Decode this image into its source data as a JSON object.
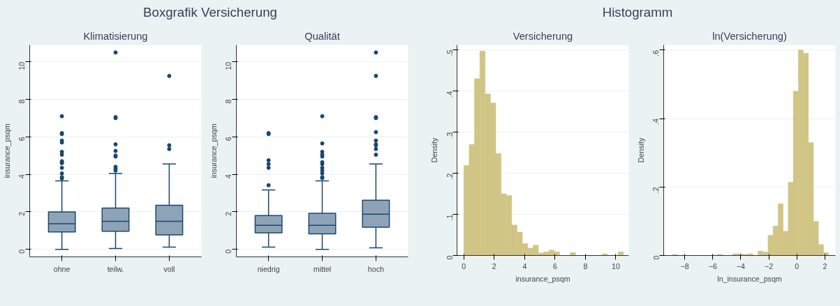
{
  "chart_data": [
    {
      "type": "box",
      "title": "Boxgrafik Versicherung",
      "subtitle": "Klimatisierung",
      "ylabel": "insurance_psqm",
      "categories": [
        "ohne",
        "teilw.",
        "voll"
      ],
      "color": "#8fa3b7",
      "marker": "circle",
      "grid": "y",
      "ylim": [
        -0.4,
        10.9
      ],
      "yticks": [
        0,
        2,
        4,
        6,
        8,
        10
      ],
      "boxes": [
        {
          "low": 0,
          "q1": 0.93,
          "median": 1.37,
          "q3": 2.0,
          "high": 3.65,
          "outliers": [
            3.78,
            3.85,
            4.05,
            4.35,
            4.6,
            4.65,
            4.7,
            5.05,
            5.2,
            5.7,
            5.8,
            6.15,
            6.2,
            7.1
          ]
        },
        {
          "low": 0.05,
          "q1": 0.97,
          "median": 1.5,
          "q3": 2.2,
          "high": 4.05,
          "outliers": [
            4.2,
            4.3,
            4.4,
            4.95,
            5.0,
            5.25,
            5.6,
            7.0,
            7.05,
            10.5
          ]
        },
        {
          "low": 0.12,
          "q1": 0.77,
          "median": 1.5,
          "q3": 2.35,
          "high": 4.55,
          "outliers": [
            5.35,
            5.55,
            9.25
          ]
        }
      ]
    },
    {
      "type": "box",
      "subtitle": "Qualität",
      "ylabel": "insurance_psqm",
      "categories": [
        "niedrig",
        "mittel",
        "hoch"
      ],
      "color": "#8fa3b7",
      "marker": "circle",
      "grid": "y",
      "ylim": [
        -0.4,
        10.9
      ],
      "yticks": [
        0,
        2,
        4,
        6,
        8,
        10
      ],
      "boxes": [
        {
          "low": 0.12,
          "q1": 0.88,
          "median": 1.28,
          "q3": 1.8,
          "high": 3.17,
          "outliers": [
            3.42,
            4.35,
            4.55,
            4.75,
            6.15,
            6.2
          ]
        },
        {
          "low": 0,
          "q1": 0.83,
          "median": 1.28,
          "q3": 1.92,
          "high": 3.65,
          "outliers": [
            3.8,
            3.85,
            4.05,
            4.2,
            4.35,
            4.55,
            4.65,
            4.95,
            5.05,
            5.2,
            5.65,
            7.1
          ]
        },
        {
          "low": 0.08,
          "q1": 1.18,
          "median": 1.88,
          "q3": 2.62,
          "high": 4.55,
          "outliers": [
            5.05,
            5.35,
            5.55,
            5.6,
            5.8,
            6.25,
            7.0,
            7.05,
            9.25,
            10.5
          ]
        }
      ]
    },
    {
      "type": "histogram",
      "title": "Histogramm",
      "subtitle": "Versicherung",
      "xlabel": "insurance_psqm",
      "ylabel": "Density",
      "color": "#d0c584",
      "grid": "y",
      "bins": [
        0,
        0.35,
        0.7,
        1.05,
        1.4,
        1.75,
        2.1,
        2.45,
        2.8,
        3.15,
        3.5,
        3.85,
        4.2,
        4.55,
        4.9,
        5.25,
        5.6,
        5.95,
        6.3,
        6.65,
        7.0,
        7.35,
        7.7,
        8.05,
        8.4,
        8.75,
        9.1,
        9.45,
        9.8,
        10.15,
        10.5
      ],
      "values": [
        0.219,
        0.27,
        0.43,
        0.497,
        0.393,
        0.371,
        0.248,
        0.15,
        0.146,
        0.074,
        0.057,
        0.029,
        0.018,
        0.025,
        0.006,
        0.009,
        0.013,
        0.009,
        0,
        0,
        0.007,
        0,
        0,
        0,
        0,
        0,
        0.004,
        0,
        0,
        0.009
      ],
      "xlim": [
        -0.45,
        10.85
      ],
      "xticks": [
        0,
        2,
        4,
        6,
        8,
        10
      ],
      "ylim": [
        0,
        0.512
      ],
      "yticks": [
        0,
        {
          "value": 0.1,
          "label": ".1"
        },
        {
          "value": 0.2,
          "label": ".2"
        },
        {
          "value": 0.3,
          "label": ".3"
        },
        {
          "value": 0.4,
          "label": ".4"
        },
        {
          "value": 0.5,
          "label": ".5"
        }
      ]
    },
    {
      "type": "histogram",
      "subtitle": "ln(Versicherung)",
      "xlabel": "ln_insurance_psqm",
      "ylabel": "Density",
      "color": "#d0c584",
      "grid": "y",
      "bins": [
        -8.9,
        -8.54,
        -8.18,
        -7.82,
        -7.46,
        -7.1,
        -6.74,
        -6.38,
        -6.02,
        -5.66,
        -5.3,
        -4.94,
        -4.58,
        -4.22,
        -3.86,
        -3.5,
        -3.14,
        -2.78,
        -2.42,
        -2.06,
        -1.7,
        -1.34,
        -0.98,
        -0.62,
        -0.26,
        0.1,
        0.46,
        0.82,
        1.18,
        1.54,
        1.9,
        2.26
      ],
      "values": [
        0.003,
        0,
        0,
        0,
        0,
        0,
        0,
        0,
        0,
        0.003,
        0,
        0,
        0.005,
        0.005,
        0.003,
        0.005,
        0,
        0.013,
        0.01,
        0.059,
        0.086,
        0.151,
        0.071,
        0.214,
        0.48,
        0.6,
        0.591,
        0.33,
        0.1,
        0.032,
        0.008
      ],
      "xlim": [
        -9.5,
        2.75
      ],
      "xticks": [
        -8,
        -6,
        -4,
        -2,
        0,
        2
      ],
      "ylim": [
        0,
        0.615
      ],
      "yticks": [
        0,
        {
          "value": 0.2,
          "label": ".2"
        },
        {
          "value": 0.4,
          "label": ".4"
        },
        {
          "value": 0.6,
          "label": ".6"
        }
      ]
    }
  ]
}
